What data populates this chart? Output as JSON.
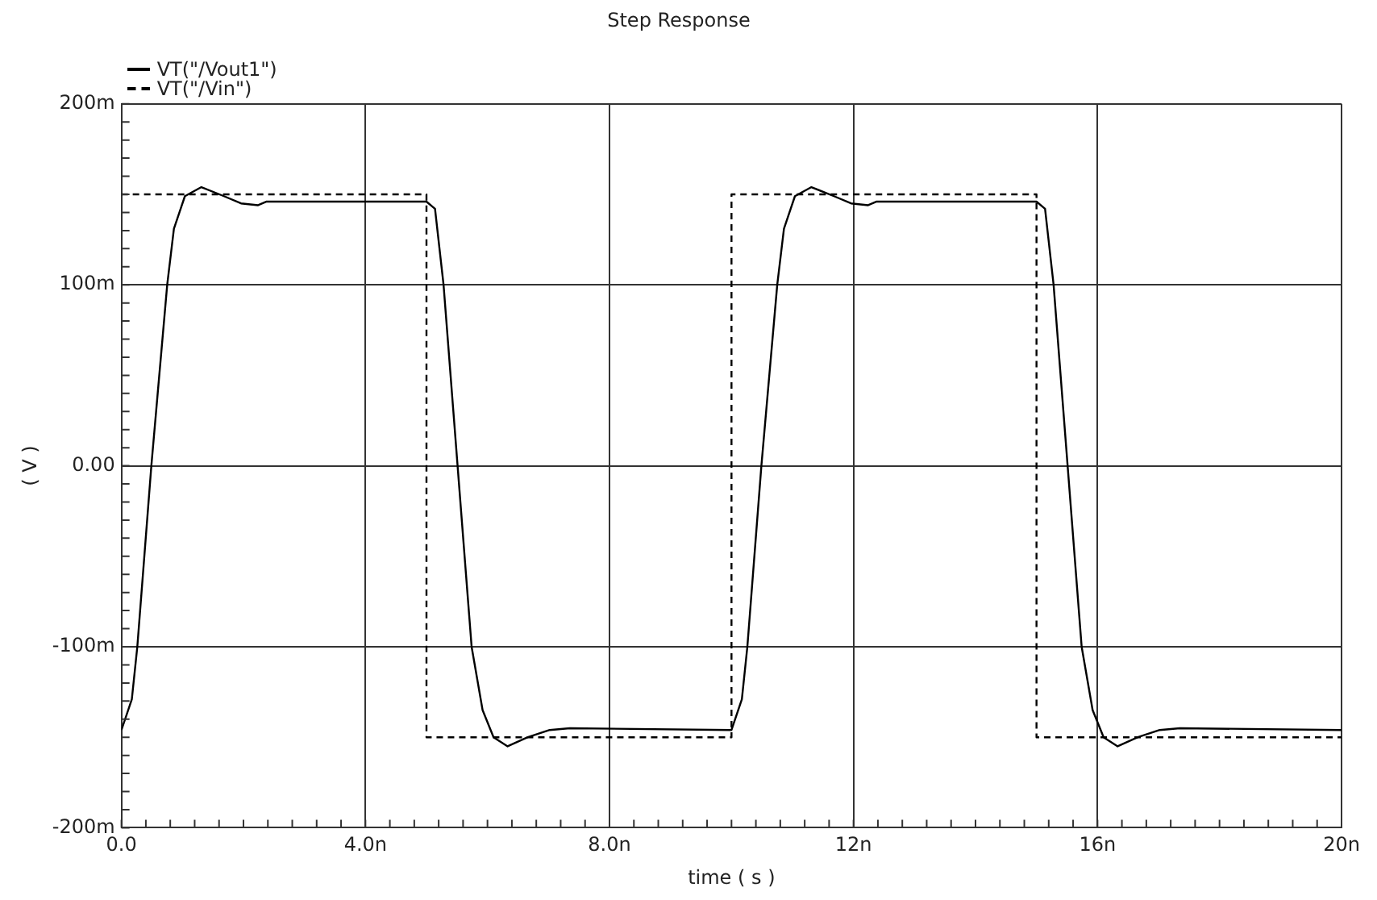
{
  "chart_data": {
    "type": "line",
    "title": "Step Response",
    "xlabel": "time ( s )",
    "ylabel": "( V )",
    "xlim": [
      0,
      20
    ],
    "ylim": [
      -200,
      200
    ],
    "xticks": [
      {
        "value": 0,
        "label": "0.0"
      },
      {
        "value": 0.4,
        "label": null
      },
      {
        "value": 0.8,
        "label": null
      },
      {
        "value": 1.2,
        "label": null
      },
      {
        "value": 1.6,
        "label": null
      },
      {
        "value": 2,
        "label": null
      },
      {
        "value": 2.4,
        "label": null
      },
      {
        "value": 2.8,
        "label": null
      },
      {
        "value": 3.2,
        "label": null
      },
      {
        "value": 3.6,
        "label": null
      },
      {
        "value": 4,
        "label": "4.0n"
      },
      {
        "value": 4.4,
        "label": null
      },
      {
        "value": 4.8,
        "label": null
      },
      {
        "value": 5.2,
        "label": null
      },
      {
        "value": 5.6,
        "label": null
      },
      {
        "value": 6,
        "label": null
      },
      {
        "value": 6.4,
        "label": null
      },
      {
        "value": 6.8,
        "label": null
      },
      {
        "value": 7.2,
        "label": null
      },
      {
        "value": 7.6,
        "label": null
      },
      {
        "value": 8,
        "label": "8.0n"
      },
      {
        "value": 8.4,
        "label": null
      },
      {
        "value": 8.8,
        "label": null
      },
      {
        "value": 9.2,
        "label": null
      },
      {
        "value": 9.6,
        "label": null
      },
      {
        "value": 10,
        "label": null
      },
      {
        "value": 10.4,
        "label": null
      },
      {
        "value": 10.8,
        "label": null
      },
      {
        "value": 11.2,
        "label": null
      },
      {
        "value": 11.6,
        "label": null
      },
      {
        "value": 12,
        "label": "12n"
      },
      {
        "value": 12.4,
        "label": null
      },
      {
        "value": 12.8,
        "label": null
      },
      {
        "value": 13.2,
        "label": null
      },
      {
        "value": 13.6,
        "label": null
      },
      {
        "value": 14,
        "label": null
      },
      {
        "value": 14.4,
        "label": null
      },
      {
        "value": 14.8,
        "label": null
      },
      {
        "value": 15.2,
        "label": null
      },
      {
        "value": 15.6,
        "label": null
      },
      {
        "value": 16,
        "label": "16n"
      },
      {
        "value": 16.4,
        "label": null
      },
      {
        "value": 16.8,
        "label": null
      },
      {
        "value": 17.2,
        "label": null
      },
      {
        "value": 17.6,
        "label": null
      },
      {
        "value": 18,
        "label": null
      },
      {
        "value": 18.4,
        "label": null
      },
      {
        "value": 18.8,
        "label": null
      },
      {
        "value": 19.2,
        "label": null
      },
      {
        "value": 19.6,
        "label": null
      },
      {
        "value": 20,
        "label": "20n"
      }
    ],
    "yticks": [
      {
        "value": -200,
        "label": "-200m"
      },
      {
        "value": -190,
        "label": null
      },
      {
        "value": -180,
        "label": null
      },
      {
        "value": -170,
        "label": null
      },
      {
        "value": -160,
        "label": null
      },
      {
        "value": -150,
        "label": null
      },
      {
        "value": -140,
        "label": null
      },
      {
        "value": -130,
        "label": null
      },
      {
        "value": -120,
        "label": null
      },
      {
        "value": -110,
        "label": null
      },
      {
        "value": -100,
        "label": "-100m"
      },
      {
        "value": -90,
        "label": null
      },
      {
        "value": -80,
        "label": null
      },
      {
        "value": -70,
        "label": null
      },
      {
        "value": -60,
        "label": null
      },
      {
        "value": -50,
        "label": null
      },
      {
        "value": -40,
        "label": null
      },
      {
        "value": -30,
        "label": null
      },
      {
        "value": -20,
        "label": null
      },
      {
        "value": -10,
        "label": null
      },
      {
        "value": 0,
        "label": "0.00"
      },
      {
        "value": 10,
        "label": null
      },
      {
        "value": 20,
        "label": null
      },
      {
        "value": 30,
        "label": null
      },
      {
        "value": 40,
        "label": null
      },
      {
        "value": 50,
        "label": null
      },
      {
        "value": 60,
        "label": null
      },
      {
        "value": 70,
        "label": null
      },
      {
        "value": 80,
        "label": null
      },
      {
        "value": 90,
        "label": null
      },
      {
        "value": 100,
        "label": "100m"
      },
      {
        "value": 110,
        "label": null
      },
      {
        "value": 120,
        "label": null
      },
      {
        "value": 130,
        "label": null
      },
      {
        "value": 140,
        "label": null
      },
      {
        "value": 150,
        "label": null
      },
      {
        "value": 160,
        "label": null
      },
      {
        "value": 170,
        "label": null
      },
      {
        "value": 180,
        "label": null
      },
      {
        "value": 190,
        "label": null
      },
      {
        "value": 200,
        "label": "200m"
      }
    ],
    "grid": true,
    "legend": "top left",
    "marker": "none",
    "series": [
      {
        "name": "VT(\"/Vout1\")",
        "color": "#000000",
        "line_style": "solid",
        "x": [
          0,
          0.17,
          0.26,
          0.49,
          0.75,
          0.86,
          1.04,
          1.31,
          1.68,
          1.96,
          2.24,
          2.38,
          5,
          5.14,
          5.28,
          5.51,
          5.74,
          5.92,
          6.1,
          6.33,
          6.66,
          7.02,
          7.35,
          10,
          10.17,
          10.26,
          10.49,
          10.75,
          10.86,
          11.04,
          11.31,
          11.68,
          11.96,
          12.24,
          12.38,
          15,
          15.14,
          15.28,
          15.51,
          15.74,
          15.92,
          16.1,
          16.33,
          16.66,
          17.02,
          17.35,
          20
        ],
        "values": [
          -146,
          -129,
          -100,
          0,
          100,
          131,
          149,
          154,
          149,
          145,
          144,
          146,
          146,
          142,
          100,
          0,
          -100,
          -135,
          -150,
          -155,
          -150,
          -146,
          -145,
          -146,
          -129,
          -100,
          0,
          100,
          131,
          149,
          154,
          149,
          145,
          144,
          146,
          146,
          142,
          100,
          0,
          -100,
          -135,
          -150,
          -155,
          -150,
          -146,
          -145,
          -146
        ]
      },
      {
        "name": "VT(\"/Vin\")",
        "color": "#000000",
        "line_style": "dashed",
        "x": [
          0,
          5,
          5,
          10,
          10,
          15,
          15,
          20
        ],
        "values": [
          150,
          150,
          -150,
          -150,
          150,
          150,
          -150,
          -150
        ]
      }
    ]
  }
}
